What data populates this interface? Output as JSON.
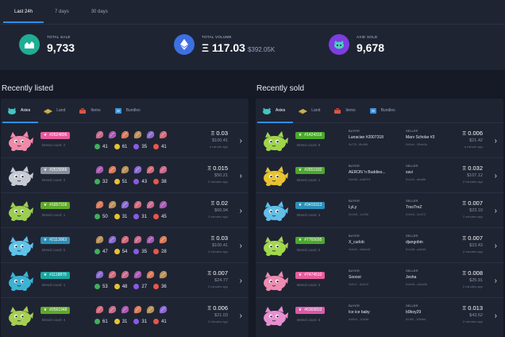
{
  "period_tabs": [
    "Last 24h",
    "7 days",
    "30 days"
  ],
  "summary": [
    {
      "label": "TOTAL SALE",
      "value": "9,733",
      "sub": "",
      "icon": "chart-icon",
      "color": "#1fae94"
    },
    {
      "label": "TOTAL VOLUME",
      "value": "Ξ 117.03",
      "sub": "$392.05K",
      "icon": "ethereum-icon",
      "color": "#3d6fe0"
    },
    {
      "label": "AXIE SOLD",
      "value": "9,678",
      "sub": "",
      "icon": "axie-icon",
      "color": "#7e3de0"
    }
  ],
  "recently_listed": {
    "title": "Recently listed",
    "tabs": [
      "Axies",
      "Land",
      "Items",
      "Bundles"
    ],
    "rows": [
      {
        "id": "#2624896",
        "badge_color": "#e85a9d",
        "axie_color": "#f08aa8",
        "breed": "Breed count: 2",
        "stats": [
          "41",
          "61",
          "35",
          "41"
        ],
        "price": "Ξ 0.03",
        "usd": "$100.41",
        "ago": "a minute ago"
      },
      {
        "id": "#2515666",
        "badge_color": "#8a8f9c",
        "axie_color": "#c7cad3",
        "breed": "Breed count: 2",
        "stats": [
          "32",
          "51",
          "43",
          "38"
        ],
        "price": "Ξ 0.015",
        "usd": "$50.21",
        "ago": "2 minutes ago"
      },
      {
        "id": "#1657316",
        "badge_color": "#5fa82a",
        "axie_color": "#9ccf4e",
        "breed": "Breed count: 1",
        "stats": [
          "50",
          "31",
          "31",
          "45"
        ],
        "price": "Ξ 0.02",
        "usd": "$66.94",
        "ago": "2 minutes ago"
      },
      {
        "id": "#2113063",
        "badge_color": "#2a8fb8",
        "axie_color": "#5fc2e8",
        "breed": "Breed count: 0",
        "stats": [
          "47",
          "54",
          "35",
          "28"
        ],
        "price": "Ξ 0.03",
        "usd": "$100.41",
        "ago": "2 minutes ago"
      },
      {
        "id": "#1118879",
        "badge_color": "#1aa6a0",
        "axie_color": "#3bb3d4",
        "breed": "Breed count: 1",
        "stats": [
          "53",
          "48",
          "27",
          "36"
        ],
        "price": "Ξ 0.007",
        "usd": "$24.77",
        "ago": "2 minutes ago"
      },
      {
        "id": "#2561948",
        "badge_color": "#5fa82a",
        "axie_color": "#a6cf52",
        "breed": "Breed count: 4",
        "stats": [
          "61",
          "31",
          "31",
          "41"
        ],
        "price": "Ξ 0.006",
        "usd": "$21.03",
        "ago": "2 minutes ago"
      }
    ]
  },
  "recently_sold": {
    "title": "Recently sold",
    "tabs": [
      "Axies",
      "Land",
      "Items",
      "Bundles"
    ],
    "buyer_label": "BUYER",
    "seller_label": "SELLER",
    "rows": [
      {
        "id": "#1424316",
        "badge_color": "#4aa82a",
        "axie_color": "#9fd44a",
        "breed": "Breed count: 5",
        "buyer": "Lunacian #2007318",
        "buyer_addr": "0x73f...8b456",
        "seller": "Marv Scholar #3",
        "seller_addr": "0x5cb...39eb3c",
        "price": "Ξ 0.006",
        "usd": "$21.42",
        "ago": "a minute ago"
      },
      {
        "id": "#2651932",
        "badge_color": "#4aa82a",
        "axie_color": "#e8c330",
        "breed": "Breed count: 1",
        "buyer": "AERON 'n Buddies...",
        "buyer_addr": "0xb98...ea8701",
        "seller": "xavi",
        "seller_addr": "0x1c5...aba8b",
        "price": "Ξ 0.032",
        "usd": "$107.12",
        "ago": "2 minutes ago"
      },
      {
        "id": "#3415313",
        "badge_color": "#2a8fb8",
        "axie_color": "#5fbfe8",
        "breed": "Breed count: 4",
        "buyer": "LyLy",
        "buyer_addr": "0x1b5...1c19b",
        "seller": "TrooTreZ",
        "seller_addr": "0x2e5...4c472",
        "price": "Ξ 0.007",
        "usd": "$23.10",
        "ago": "2 minutes ago"
      },
      {
        "id": "#7765695",
        "badge_color": "#4aa82a",
        "axie_color": "#a2d84e",
        "breed": "Breed count: 0",
        "buyer": "X_curlob",
        "buyer_addr": "0x5c5...4dbec8",
        "seller": "djangobin",
        "seller_addr": "0x1d8...aa1bb",
        "price": "Ξ 0.007",
        "usd": "$23.43",
        "ago": "2 minutes ago"
      },
      {
        "id": "#7474510",
        "badge_color": "#e85a9d",
        "axie_color": "#f08ab0",
        "breed": "Breed count: 2",
        "buyer": "Sooooi",
        "buyer_addr": "0x5c7...6c5c3",
        "seller": "Jesha",
        "seller_addr": "0x0e8...c5cb3b",
        "price": "Ξ 0.008",
        "usd": "$25.91",
        "ago": "2 minutes ago"
      },
      {
        "id": "#6369833",
        "badge_color": "#d85aa8",
        "axie_color": "#e88fd0",
        "breed": "Breed count: 5",
        "buyer": "Ice ice baby",
        "buyer_addr": "0x6b3...10a3b",
        "seller": "b0boy29",
        "seller_addr": "0x3f5...1f5dbd",
        "price": "Ξ 0.013",
        "usd": "$43.52",
        "ago": "2 minutes ago"
      }
    ]
  },
  "colors": {
    "accent": "#2f8ee8",
    "health": "#3fb05a",
    "speed": "#e8c330",
    "skill": "#8a5ae8",
    "morale": "#e8564a"
  }
}
